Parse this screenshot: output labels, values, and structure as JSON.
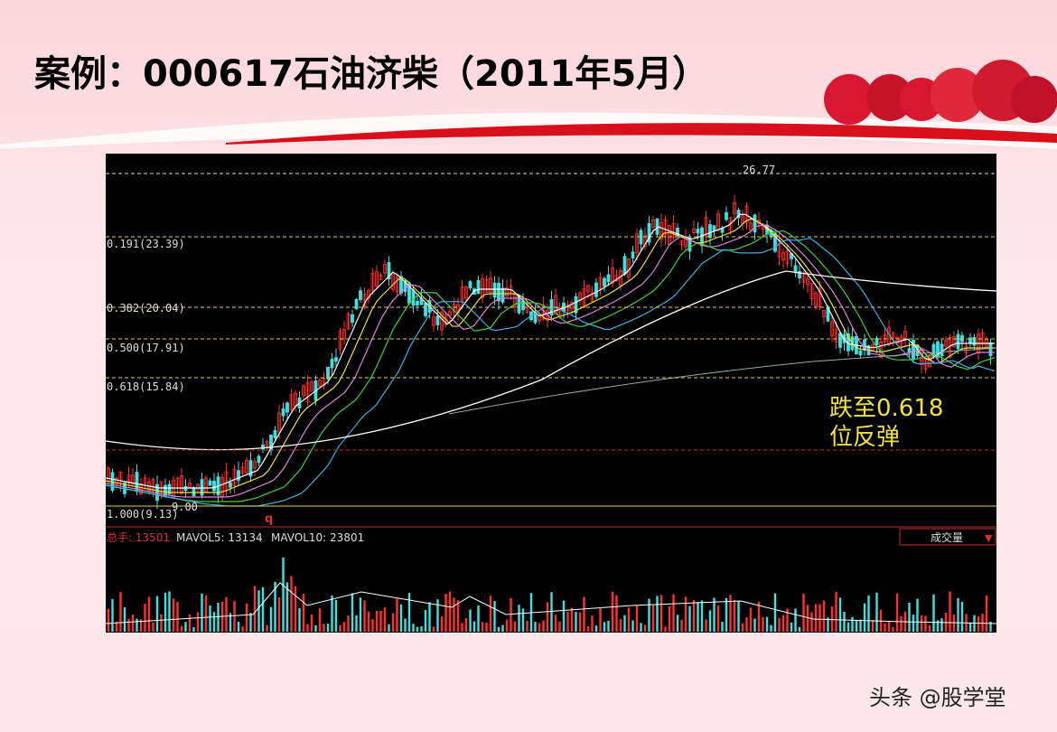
{
  "header": {
    "title": "案例：000617石油济柴（2011年5月）"
  },
  "chart": {
    "levels": [
      "0.191(23.39)",
      "0.382(20.04)",
      "0.500(17.91)",
      "0.618(15.84)",
      "1.000(9.13)"
    ],
    "high_label": "26.77",
    "low_label": "9.00",
    "marker": "q",
    "annotation": [
      "跌至0.618",
      "位反弹"
    ],
    "volume": {
      "total": "总手: 13501",
      "mavol5": "MAVOL5: 13134",
      "mavol10": "MAVOL10: 23801",
      "selector": "成交量"
    }
  },
  "footer": {
    "watermark": "头条 @股学堂"
  }
}
